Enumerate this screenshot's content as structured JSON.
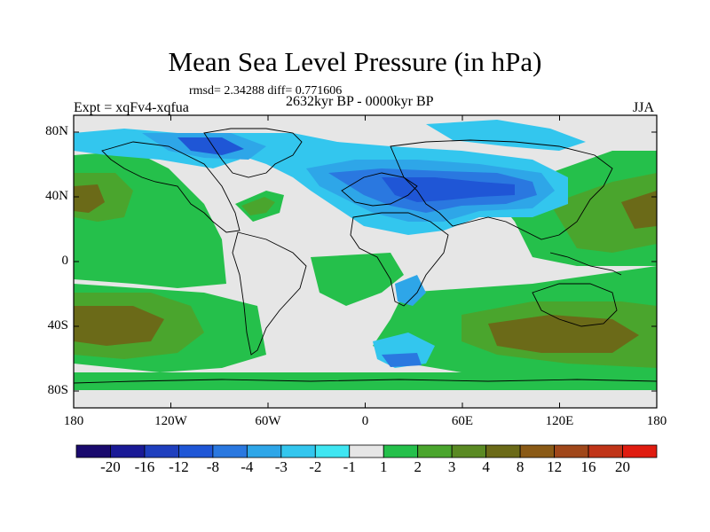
{
  "title": "Mean Sea Level Pressure (in hPa)",
  "stats": "rmsd= 2.34288 diff= 0.771606",
  "experiment": "Expt = xqFv4-xqfua",
  "period": "2632kyr BP - 0000kyr BP",
  "season": "JJA",
  "y_ticks": [
    "80N",
    "40N",
    "0",
    "40S",
    "80S"
  ],
  "x_ticks": [
    "180",
    "120W",
    "60W",
    "0",
    "60E",
    "120E",
    "180"
  ],
  "colorbar": {
    "colors": [
      "#1a0a6e",
      "#1a1a96",
      "#1f3fbe",
      "#1f56d6",
      "#2a78e0",
      "#2ea6e8",
      "#33c6ee",
      "#3fe6f2",
      "#e6e6e6",
      "#25c04b",
      "#4aa52d",
      "#5a8a23",
      "#6b6a18",
      "#8a5a16",
      "#a0471a",
      "#c03418",
      "#e01c10"
    ],
    "labels": [
      "-20",
      "-16",
      "-12",
      "-8",
      "-4",
      "-3",
      "-2",
      "-1",
      "1",
      "2",
      "3",
      "4",
      "8",
      "12",
      "16",
      "20"
    ]
  }
}
